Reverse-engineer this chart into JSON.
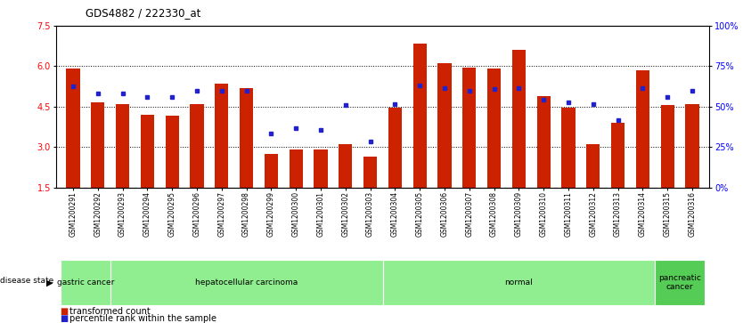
{
  "title": "GDS4882 / 222330_at",
  "samples": [
    "GSM1200291",
    "GSM1200292",
    "GSM1200293",
    "GSM1200294",
    "GSM1200295",
    "GSM1200296",
    "GSM1200297",
    "GSM1200298",
    "GSM1200299",
    "GSM1200300",
    "GSM1200301",
    "GSM1200302",
    "GSM1200303",
    "GSM1200304",
    "GSM1200305",
    "GSM1200306",
    "GSM1200307",
    "GSM1200308",
    "GSM1200309",
    "GSM1200310",
    "GSM1200311",
    "GSM1200312",
    "GSM1200313",
    "GSM1200314",
    "GSM1200315",
    "GSM1200316"
  ],
  "bar_values": [
    5.9,
    4.65,
    4.6,
    4.2,
    4.15,
    4.6,
    5.35,
    5.2,
    2.75,
    2.9,
    2.9,
    3.1,
    2.65,
    4.45,
    6.85,
    6.1,
    5.95,
    5.9,
    6.6,
    4.9,
    4.45,
    3.1,
    3.9,
    5.85,
    4.55,
    4.6
  ],
  "dot_values": [
    5.25,
    5.0,
    5.0,
    4.85,
    4.85,
    5.1,
    5.1,
    5.1,
    3.5,
    3.7,
    3.65,
    4.55,
    3.2,
    4.6,
    5.3,
    5.2,
    5.1,
    5.15,
    5.2,
    4.75,
    4.65,
    4.6,
    4.0,
    5.2,
    4.85,
    5.1
  ],
  "group_config": [
    {
      "label": "gastric cancer",
      "i0": 0,
      "i1": 1,
      "color": "#90EE90",
      "dark": false
    },
    {
      "label": "hepatocellular carcinoma",
      "i0": 2,
      "i1": 12,
      "color": "#90EE90",
      "dark": false
    },
    {
      "label": "normal",
      "i0": 13,
      "i1": 23,
      "color": "#90EE90",
      "dark": false
    },
    {
      "label": "pancreatic\ncancer",
      "i0": 24,
      "i1": 25,
      "color": "#55CC55",
      "dark": true
    }
  ],
  "ylim_left": [
    1.5,
    7.5
  ],
  "yticks_left": [
    1.5,
    3.0,
    4.5,
    6.0,
    7.5
  ],
  "ylim_right": [
    0,
    100
  ],
  "yticks_right": [
    0,
    25,
    50,
    75,
    100
  ],
  "ytick_labels_right": [
    "0%",
    "25%",
    "50%",
    "75%",
    "100%"
  ],
  "bar_color": "#CC2200",
  "dot_color": "#2222CC",
  "bar_width": 0.55,
  "grid_dotted_values": [
    3.0,
    4.5,
    6.0
  ],
  "background_color": "#ffffff"
}
